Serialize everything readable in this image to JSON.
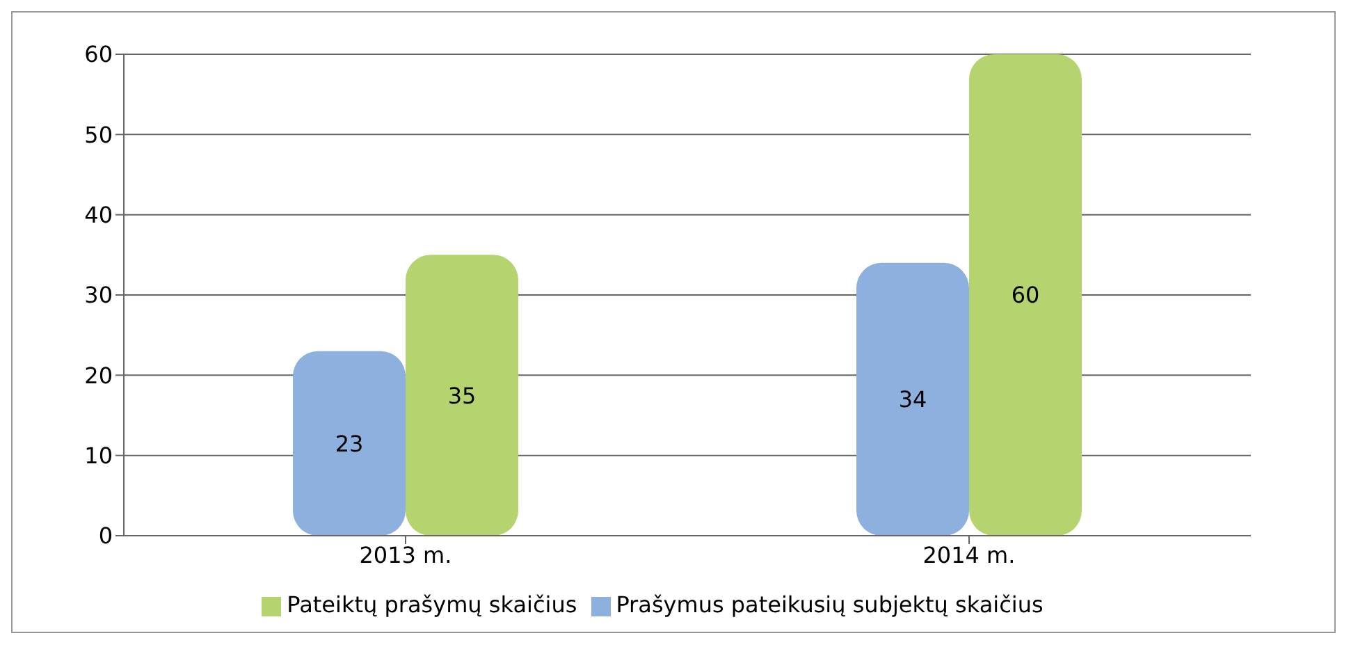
{
  "chart_data": {
    "type": "bar",
    "categories": [
      "2013 m.",
      "2014 m."
    ],
    "series": [
      {
        "name": "Prašymus pateikusių subjektų skaičius",
        "color": "#8eb0de",
        "values": [
          23,
          34
        ]
      },
      {
        "name": "Pateiktų prašymų skaičius",
        "color": "#b5d36e",
        "values": [
          35,
          60
        ]
      }
    ],
    "ylim": [
      0,
      60
    ],
    "yticks": [
      0,
      10,
      20,
      30,
      40,
      50,
      60
    ],
    "grid": "y",
    "legend": "bottom",
    "data_labels": true
  }
}
